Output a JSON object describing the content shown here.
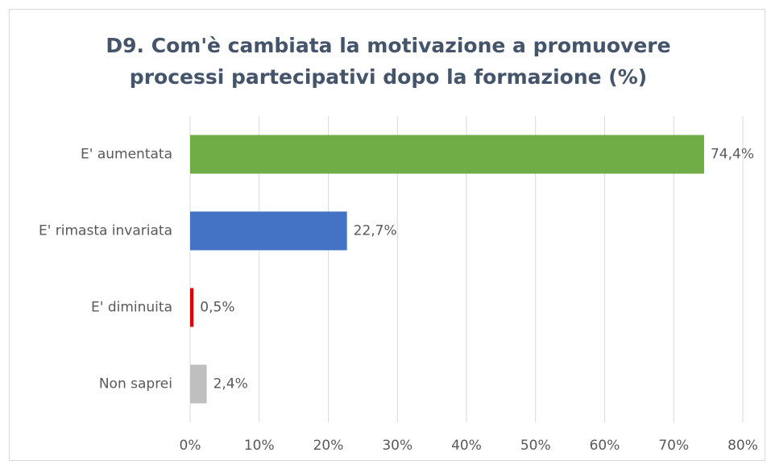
{
  "chart_data": {
    "type": "bar",
    "orientation": "horizontal",
    "title": [
      "D9. Com'è cambiata la motivazione a promuovere",
      "processi partecipativi dopo la formazione (%)"
    ],
    "categories": [
      "E' aumentata",
      "E' rimasta invariata",
      "E' diminuita",
      "Non saprei"
    ],
    "values": [
      74.4,
      22.7,
      0.5,
      2.4
    ],
    "value_labels": [
      "74,4%",
      "22,7%",
      "0,5%",
      "2,4%"
    ],
    "colors": [
      "#70ad47",
      "#4472c4",
      "#e00000",
      "#bfbfbf"
    ],
    "xlim": [
      0,
      80
    ],
    "xticks": [
      {
        "value": 0,
        "label": "0%"
      },
      {
        "value": 10,
        "label": "10%"
      },
      {
        "value": 20,
        "label": "20%"
      },
      {
        "value": 30,
        "label": "30%"
      },
      {
        "value": 40,
        "label": "40%"
      },
      {
        "value": 50,
        "label": "50%"
      },
      {
        "value": 60,
        "label": "60%"
      },
      {
        "value": 70,
        "label": "70%"
      },
      {
        "value": 80,
        "label": "80%"
      }
    ],
    "grid": true
  }
}
